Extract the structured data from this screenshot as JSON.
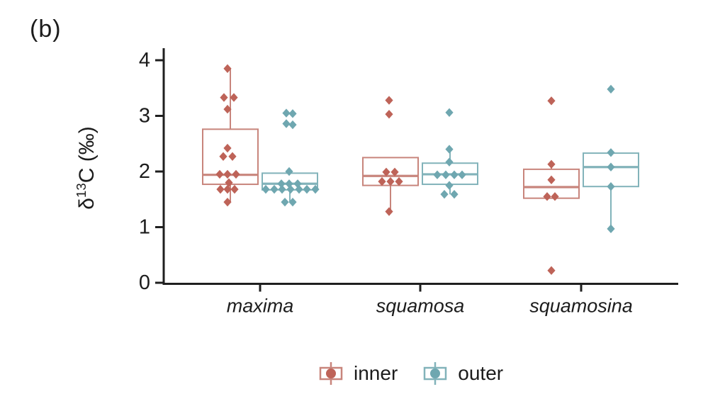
{
  "panel_label": "(b)",
  "ylabel": {
    "prefix": "δ",
    "sup": "13",
    "suffix": "C (‰)"
  },
  "chart_data": {
    "type": "boxplot",
    "title": "",
    "ylabel": "δ13C (‰)",
    "xlabel": "",
    "ylim": [
      0,
      4
    ],
    "yticks": [
      0,
      1,
      2,
      3,
      4
    ],
    "grid": "off",
    "legend_position": "bottom",
    "categories": [
      "maxima",
      "squamosa",
      "squamosina"
    ],
    "groups": [
      {
        "name": "inner",
        "point_color": "#be6358",
        "box_color": "#c8857c"
      },
      {
        "name": "outer",
        "point_color": "#6fa7b0",
        "box_color": "#82b3ba"
      }
    ],
    "axis_color": "#1f1f1f",
    "boxes": [
      {
        "category": "maxima",
        "group": "inner",
        "q1": 1.77,
        "median": 1.94,
        "q3": 2.76,
        "whisker_low": 1.45,
        "whisker_high": 3.85,
        "points": [
          [
            3.85,
            -4
          ],
          [
            3.33,
            -9
          ],
          [
            3.33,
            5
          ],
          [
            3.12,
            -4
          ],
          [
            2.42,
            -4
          ],
          [
            2.27,
            -10
          ],
          [
            2.27,
            3
          ],
          [
            1.95,
            -15
          ],
          [
            1.95,
            -4
          ],
          [
            1.95,
            8
          ],
          [
            1.8,
            -2
          ],
          [
            1.68,
            -14
          ],
          [
            1.68,
            -4
          ],
          [
            1.68,
            6
          ],
          [
            1.45,
            -4
          ]
        ]
      },
      {
        "category": "maxima",
        "group": "outer",
        "q1": 1.67,
        "median": 1.78,
        "q3": 1.97,
        "whisker_low": 1.45,
        "whisker_high": 1.97,
        "points": [
          [
            3.05,
            -5
          ],
          [
            3.04,
            4
          ],
          [
            2.86,
            -5
          ],
          [
            2.84,
            4
          ],
          [
            2.0,
            -1
          ],
          [
            1.78,
            -12
          ],
          [
            1.78,
            -1
          ],
          [
            1.78,
            11
          ],
          [
            1.68,
            -34
          ],
          [
            1.68,
            -22
          ],
          [
            1.68,
            -11
          ],
          [
            1.68,
            1
          ],
          [
            1.68,
            13
          ],
          [
            1.68,
            24
          ],
          [
            1.68,
            36
          ],
          [
            1.45,
            -7
          ],
          [
            1.45,
            4
          ]
        ]
      },
      {
        "category": "squamosa",
        "group": "inner",
        "q1": 1.75,
        "median": 1.92,
        "q3": 2.25,
        "whisker_low": 1.28,
        "whisker_high": 2.25,
        "points": [
          [
            3.28,
            -2
          ],
          [
            3.03,
            -2
          ],
          [
            1.99,
            -6
          ],
          [
            1.99,
            6
          ],
          [
            1.82,
            -12
          ],
          [
            1.82,
            0
          ],
          [
            1.82,
            12
          ],
          [
            1.28,
            -2
          ]
        ]
      },
      {
        "category": "squamosa",
        "group": "outer",
        "q1": 1.77,
        "median": 1.95,
        "q3": 2.15,
        "whisker_low": 1.59,
        "whisker_high": 2.4,
        "points": [
          [
            3.06,
            -1
          ],
          [
            2.4,
            -1
          ],
          [
            2.17,
            -1
          ],
          [
            1.94,
            -18
          ],
          [
            1.94,
            -6
          ],
          [
            1.94,
            6
          ],
          [
            1.94,
            17
          ],
          [
            1.75,
            -1
          ],
          [
            1.59,
            -8
          ],
          [
            1.59,
            6
          ]
        ]
      },
      {
        "category": "squamosina",
        "group": "inner",
        "q1": 1.52,
        "median": 1.72,
        "q3": 2.04,
        "whisker_low": 1.52,
        "whisker_high": 2.13,
        "points": [
          [
            3.27,
            0
          ],
          [
            2.13,
            0
          ],
          [
            1.85,
            0
          ],
          [
            1.55,
            -6
          ],
          [
            1.55,
            5
          ],
          [
            0.22,
            0
          ]
        ]
      },
      {
        "category": "squamosina",
        "group": "outer",
        "q1": 1.73,
        "median": 2.08,
        "q3": 2.33,
        "whisker_low": 0.97,
        "whisker_high": 2.33,
        "points": [
          [
            3.48,
            0
          ],
          [
            2.34,
            0
          ],
          [
            2.08,
            0
          ],
          [
            1.73,
            0
          ],
          [
            0.97,
            0
          ]
        ]
      }
    ]
  }
}
